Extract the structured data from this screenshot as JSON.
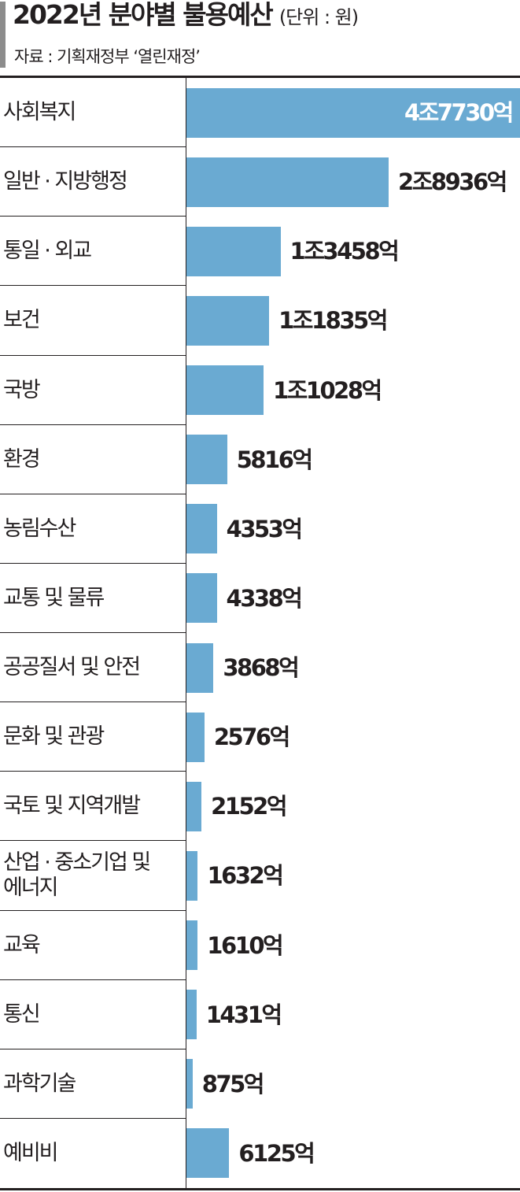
{
  "header": {
    "title": "2022년 분야별 불용예산",
    "unit": "(단위 : 원)",
    "source": "자료 : 기획재정부 ‘열린재정’"
  },
  "colors": {
    "bar": "#6aaad2",
    "text": "#231f20",
    "accent": "#8c8c8c"
  },
  "chart_data": {
    "type": "bar",
    "orientation": "horizontal",
    "title": "2022년 분야별 불용예산",
    "unit": "원",
    "categories": [
      "사회복지",
      "일반 · 지방행정",
      "통일 · 외교",
      "보건",
      "국방",
      "환경",
      "농림수산",
      "교통 및 물류",
      "공공질서 및 안전",
      "문화 및 관광",
      "국토 및 지역개발",
      "산업 · 중소기업 및 에너지",
      "교육",
      "통신",
      "과학기술",
      "예비비"
    ],
    "values": [
      47730,
      28936,
      13458,
      11835,
      11028,
      5816,
      4353,
      4338,
      3868,
      2576,
      2152,
      1632,
      1610,
      1431,
      875,
      6125
    ],
    "value_unit": "억원",
    "data_labels": [
      "4조7730억",
      "2조8936억",
      "1조3458억",
      "1조1835억",
      "1조1028억",
      "5816억",
      "4353억",
      "4338억",
      "3868억",
      "2576억",
      "2152억",
      "1632억",
      "1610억",
      "1431억",
      "875억",
      "6125억"
    ],
    "xlim": [
      0,
      47730
    ],
    "grid": false,
    "legend": "none"
  }
}
